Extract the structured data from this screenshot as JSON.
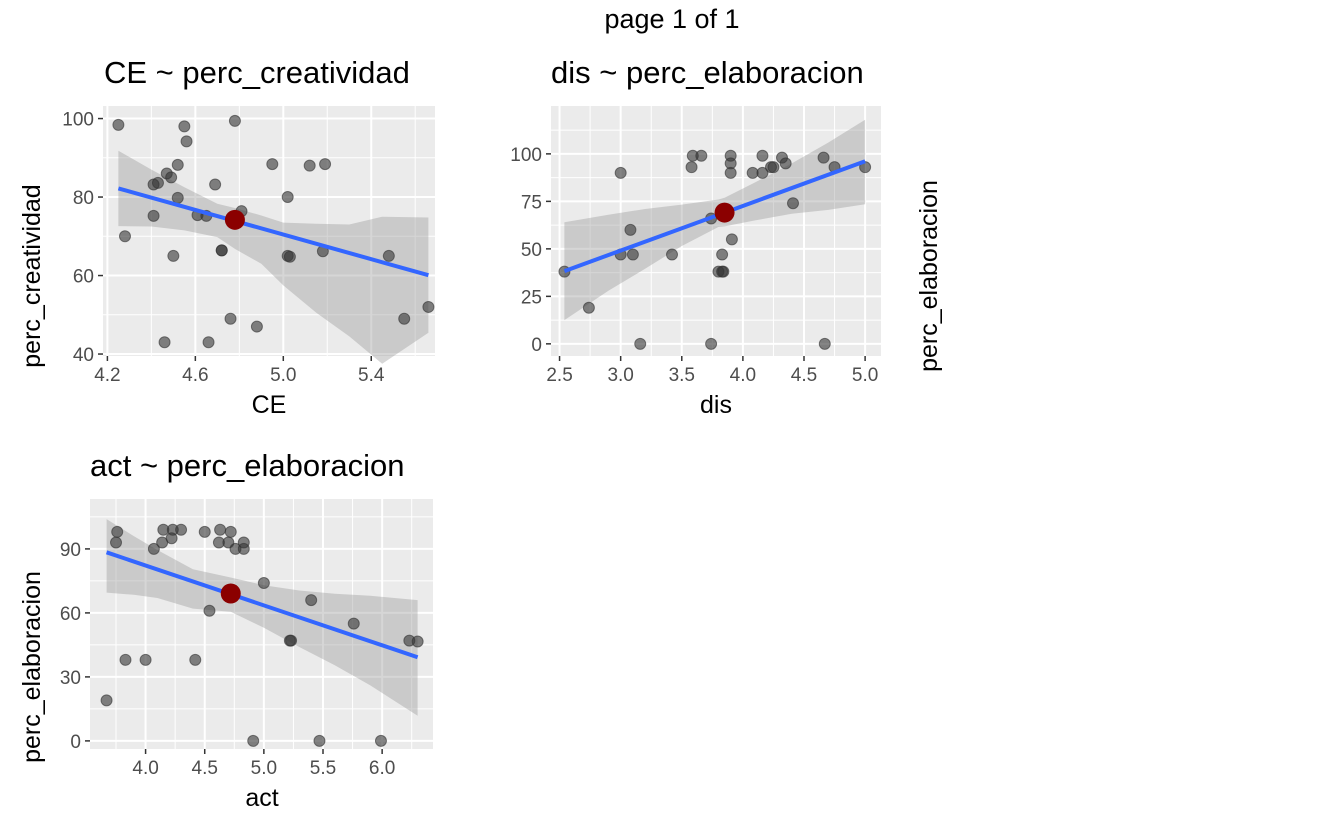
{
  "page": {
    "title": "page 1 of 1"
  },
  "colors": {
    "panel_background": "#ebebeb",
    "grid": "#ffffff",
    "point": "#333333",
    "line": "#3366ff",
    "ribbon": "#999999",
    "highlight": "#8b0000",
    "tick_text": "#4d4d4d",
    "tick_mark": "#333333"
  },
  "chart_data": [
    {
      "id": "ce",
      "type": "scatter",
      "title": "CE ~ perc_creatividad",
      "xlabel": "CE",
      "ylabel": "perc_creatividad",
      "xlim": [
        4.18,
        5.69
      ],
      "ylim": [
        39.5,
        103.2
      ],
      "x_ticks": [
        4.2,
        4.6,
        5.0,
        5.4
      ],
      "x_tick_labels": [
        "4.2",
        "4.6",
        "5.0",
        "5.4"
      ],
      "y_ticks": [
        40,
        60,
        80,
        100
      ],
      "y_tick_labels": [
        "40",
        "60",
        "80",
        "100"
      ],
      "points": [
        [
          4.25,
          98.4
        ],
        [
          4.28,
          70.0
        ],
        [
          4.41,
          75.2
        ],
        [
          4.41,
          83.2
        ],
        [
          4.43,
          83.6
        ],
        [
          4.46,
          43.0
        ],
        [
          4.47,
          86.0
        ],
        [
          4.49,
          85.0
        ],
        [
          4.5,
          65.0
        ],
        [
          4.52,
          79.8
        ],
        [
          4.52,
          88.2
        ],
        [
          4.55,
          98.0
        ],
        [
          4.56,
          94.2
        ],
        [
          4.61,
          75.4
        ],
        [
          4.65,
          75.2
        ],
        [
          4.66,
          43.0
        ],
        [
          4.69,
          83.2
        ],
        [
          4.72,
          66.4
        ],
        [
          4.72,
          66.4
        ],
        [
          4.76,
          49.0
        ],
        [
          4.78,
          99.4
        ],
        [
          4.81,
          76.4
        ],
        [
          4.88,
          47.0
        ],
        [
          4.95,
          88.4
        ],
        [
          5.02,
          80.0
        ],
        [
          5.02,
          65.0
        ],
        [
          5.03,
          64.8
        ],
        [
          5.12,
          88.0
        ],
        [
          5.18,
          66.2
        ],
        [
          5.19,
          88.4
        ],
        [
          5.48,
          65.0
        ],
        [
          5.55,
          49.0
        ],
        [
          5.66,
          52.0
        ]
      ],
      "fit": {
        "x0": 4.25,
        "y0": 82.2,
        "x1": 5.66,
        "y1": 60.1
      },
      "ribbon": [
        [
          4.25,
          91.8,
          72.6
        ],
        [
          4.4,
          87.0,
          72.5
        ],
        [
          4.55,
          82.5,
          71.5
        ],
        [
          4.7,
          78.3,
          69.8
        ],
        [
          4.78,
          77.2,
          66.8
        ],
        [
          4.9,
          75.3,
          63.0
        ],
        [
          5.0,
          73.5,
          57.5
        ],
        [
          5.15,
          73.2,
          50.5
        ],
        [
          5.3,
          73.0,
          44.5
        ],
        [
          5.45,
          75.0,
          37.5
        ],
        [
          5.66,
          74.8,
          45.4
        ]
      ],
      "highlight": {
        "x": 4.78,
        "y": 74.2
      }
    },
    {
      "id": "dis",
      "type": "scatter",
      "title": "dis ~ perc_elaboracion",
      "xlabel": "dis",
      "ylabel": "perc_elaboracion",
      "xlim": [
        2.43,
        5.13
      ],
      "ylim": [
        -6.4,
        125.2
      ],
      "x_ticks": [
        2.5,
        3.0,
        3.5,
        4.0,
        4.5,
        5.0
      ],
      "x_tick_labels": [
        "2.5",
        "3.0",
        "3.5",
        "4.0",
        "4.5",
        "5.0"
      ],
      "y_ticks": [
        0,
        25,
        50,
        75,
        100
      ],
      "y_tick_labels": [
        "0",
        "25",
        "50",
        "75",
        "100"
      ],
      "points": [
        [
          2.54,
          38.0
        ],
        [
          2.74,
          19.0
        ],
        [
          3.0,
          90.0
        ],
        [
          3.0,
          47.0
        ],
        [
          3.08,
          60.0
        ],
        [
          3.1,
          47.0
        ],
        [
          3.16,
          0.0
        ],
        [
          3.42,
          47.0
        ],
        [
          3.58,
          93.0
        ],
        [
          3.59,
          99.0
        ],
        [
          3.66,
          99.0
        ],
        [
          3.74,
          66.0
        ],
        [
          3.74,
          0.0
        ],
        [
          3.8,
          38.0
        ],
        [
          3.83,
          38.0
        ],
        [
          3.84,
          38.0
        ],
        [
          3.83,
          47.0
        ],
        [
          3.9,
          99.0
        ],
        [
          3.9,
          95.0
        ],
        [
          3.9,
          90.0
        ],
        [
          3.91,
          55.0
        ],
        [
          4.08,
          90.0
        ],
        [
          4.16,
          99.0
        ],
        [
          4.16,
          90.0
        ],
        [
          4.23,
          93.0
        ],
        [
          4.25,
          93.0
        ],
        [
          4.32,
          98.0
        ],
        [
          4.35,
          95.0
        ],
        [
          4.41,
          74.0
        ],
        [
          4.66,
          98.0
        ],
        [
          4.67,
          0.0
        ],
        [
          4.75,
          93.0
        ],
        [
          5.0,
          93.0
        ]
      ],
      "fit": {
        "x0": 2.54,
        "y0": 38.3,
        "x1": 5.0,
        "y1": 96.1
      },
      "ribbon": [
        [
          2.54,
          64.0,
          12.5
        ],
        [
          2.9,
          68.0,
          28.0
        ],
        [
          3.2,
          71.0,
          39.5
        ],
        [
          3.5,
          73.3,
          51.5
        ],
        [
          3.8,
          76.0,
          61.5
        ],
        [
          3.85,
          76.9,
          61.8
        ],
        [
          4.1,
          85.0,
          65.0
        ],
        [
          4.4,
          95.0,
          68.5
        ],
        [
          4.7,
          106.0,
          70.5
        ],
        [
          5.0,
          118.0,
          73.5
        ]
      ],
      "highlight": {
        "x": 3.85,
        "y": 69.1
      }
    },
    {
      "id": "act",
      "type": "scatter",
      "title": "act ~ perc_elaboracion",
      "xlabel": "act",
      "ylabel": "perc_elaboracion",
      "xlim": [
        3.53,
        6.43
      ],
      "ylim": [
        -3.8,
        113.4
      ],
      "x_ticks": [
        4.0,
        4.5,
        5.0,
        5.5,
        6.0
      ],
      "x_tick_labels": [
        "4.0",
        "4.5",
        "5.0",
        "5.5",
        "6.0"
      ],
      "y_ticks": [
        0,
        30,
        60,
        90
      ],
      "y_tick_labels": [
        "0",
        "30",
        "60",
        "90"
      ],
      "points": [
        [
          3.67,
          19.0
        ],
        [
          3.75,
          93.0
        ],
        [
          3.76,
          98.0
        ],
        [
          3.83,
          38.0
        ],
        [
          4.0,
          38.0
        ],
        [
          4.07,
          90.0
        ],
        [
          4.14,
          93.0
        ],
        [
          4.15,
          99.0
        ],
        [
          4.22,
          95.0
        ],
        [
          4.23,
          99.0
        ],
        [
          4.3,
          99.0
        ],
        [
          4.42,
          38.0
        ],
        [
          4.5,
          98.0
        ],
        [
          4.54,
          61.0
        ],
        [
          4.62,
          93.0
        ],
        [
          4.63,
          99.0
        ],
        [
          4.7,
          93.0
        ],
        [
          4.72,
          98.0
        ],
        [
          4.76,
          90.0
        ],
        [
          4.83,
          90.0
        ],
        [
          4.83,
          93.0
        ],
        [
          4.91,
          0.0
        ],
        [
          5.0,
          74.0
        ],
        [
          5.22,
          47.0
        ],
        [
          5.23,
          47.0
        ],
        [
          5.4,
          66.0
        ],
        [
          5.47,
          0.0
        ],
        [
          5.76,
          55.0
        ],
        [
          5.99,
          0.0
        ],
        [
          6.23,
          47.0
        ],
        [
          6.3,
          46.6
        ]
      ],
      "fit": {
        "x0": 3.67,
        "y0": 88.4,
        "x1": 6.3,
        "y1": 39.2
      },
      "ribbon": [
        [
          3.67,
          104.0,
          69.5
        ],
        [
          3.9,
          96.0,
          68.5
        ],
        [
          4.1,
          89.5,
          67.0
        ],
        [
          4.4,
          80.5,
          62.0
        ],
        [
          4.72,
          76.6,
          60.5
        ],
        [
          5.0,
          73.0,
          53.0
        ],
        [
          5.3,
          70.5,
          44.0
        ],
        [
          5.6,
          69.0,
          35.5
        ],
        [
          5.9,
          68.0,
          26.0
        ],
        [
          6.3,
          66.0,
          11.8
        ]
      ],
      "highlight": {
        "x": 4.72,
        "y": 69.1
      }
    }
  ]
}
